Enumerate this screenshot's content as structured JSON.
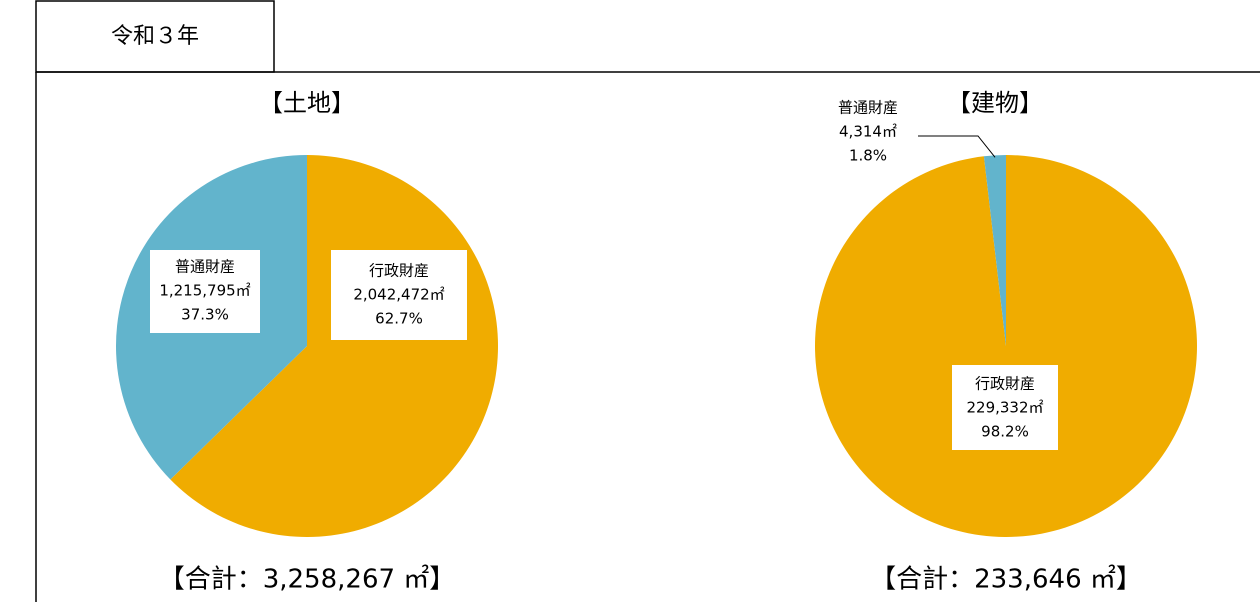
{
  "header": {
    "tab": "令和３年"
  },
  "chart_data": [
    {
      "type": "pie",
      "title": "【土地】",
      "total": "【合計：3,258,267 ㎡】",
      "categories": [
        "行政財産",
        "普通財産"
      ],
      "values": [
        2042472,
        1215795
      ],
      "value_labels": [
        "2,042,472㎡",
        "1,215,795㎡"
      ],
      "percent_labels": [
        "62.7%",
        "37.3%"
      ],
      "colors": [
        "#f0ac00",
        "#62b4cc"
      ]
    },
    {
      "type": "pie",
      "title": "【建物】",
      "total": "【合計：233,646 ㎡】",
      "categories": [
        "行政財産",
        "普通財産"
      ],
      "values": [
        229332,
        4314
      ],
      "value_labels": [
        "229,332㎡",
        "4,314㎡"
      ],
      "percent_labels": [
        "98.2%",
        "1.8%"
      ],
      "colors": [
        "#f0ac00",
        "#62b4cc"
      ]
    }
  ]
}
